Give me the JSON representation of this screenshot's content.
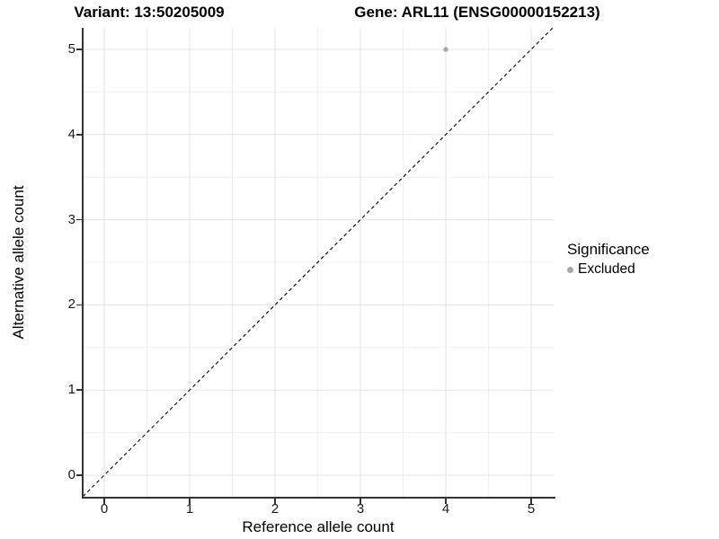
{
  "titles": {
    "variant": "Variant: 13:50205009",
    "gene": "Gene: ARL11 (ENSG00000152213)"
  },
  "axes": {
    "x": {
      "label": "Reference allele count",
      "ticks": [
        "0",
        "1",
        "2",
        "3",
        "4",
        "5"
      ]
    },
    "y": {
      "label": "Alternative allele count",
      "ticks": [
        "0",
        "1",
        "2",
        "3",
        "4",
        "5"
      ]
    }
  },
  "legend": {
    "title": "Significance",
    "items": [
      {
        "label": "Excluded",
        "color": "#a8a8a8"
      }
    ]
  },
  "colors": {
    "background": "#ffffff",
    "grid_major": "#e3e3e3",
    "grid_minor": "#f0f0f0",
    "axis_line": "#333333",
    "reference_line": "#000000",
    "point_excluded": "#a8a8a8",
    "text": "#000000"
  },
  "chart_data": {
    "type": "scatter",
    "title": "Variant: 13:50205009 — Gene: ARL11 (ENSG00000152213)",
    "xlabel": "Reference allele count",
    "ylabel": "Alternative allele count",
    "xlim": [
      -0.25,
      5.25
    ],
    "ylim": [
      -0.25,
      5.25
    ],
    "x_ticks": [
      0,
      1,
      2,
      3,
      4,
      5
    ],
    "y_ticks": [
      0,
      1,
      2,
      3,
      4,
      5
    ],
    "grid": "major and minor gridlines, light gray on white",
    "legend_position": "right-center",
    "series": [
      {
        "name": "Excluded",
        "color": "#a8a8a8",
        "points": [
          {
            "x": 4,
            "y": 5
          }
        ]
      }
    ],
    "reference_line": {
      "slope": 1,
      "intercept": 0,
      "style": "dashed",
      "color": "#000000"
    }
  }
}
